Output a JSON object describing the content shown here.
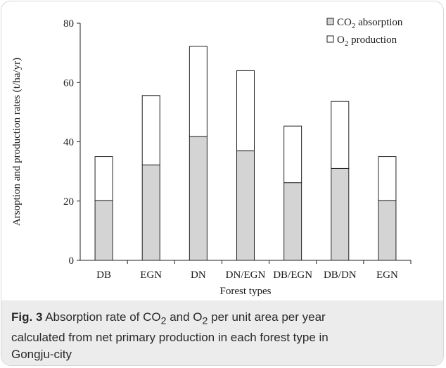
{
  "chart_data": {
    "type": "bar",
    "stacked": true,
    "categories": [
      "DB",
      "EGN",
      "DN",
      "DN/EGN",
      "DB/EGN",
      "DB/DN",
      "EGN"
    ],
    "series": [
      {
        "name": "CO2 absorption",
        "values": [
          20.2,
          32.2,
          41.8,
          37.0,
          26.2,
          31.0,
          20.2
        ],
        "color": "#d4d4d4"
      },
      {
        "name": "O2 production",
        "values": [
          14.8,
          23.4,
          30.4,
          27.0,
          19.1,
          22.6,
          14.8
        ],
        "color": "#ffffff"
      }
    ],
    "xlabel": "Forest types",
    "ylabel": "Arsoption and production rates (t/ha/yr)",
    "ylim": [
      0,
      80
    ],
    "yticks": [
      0,
      20,
      40,
      60,
      80
    ],
    "grid": false,
    "legend_position": "top-right"
  },
  "caption": {
    "label": "Fig. 3",
    "text_before": "Absorption rate of CO",
    "sub1": "2",
    "text_middle": " and O",
    "sub2": "2",
    "text_after": " per unit area per year calculated from net primary production in each forest type in Gongju-city"
  }
}
